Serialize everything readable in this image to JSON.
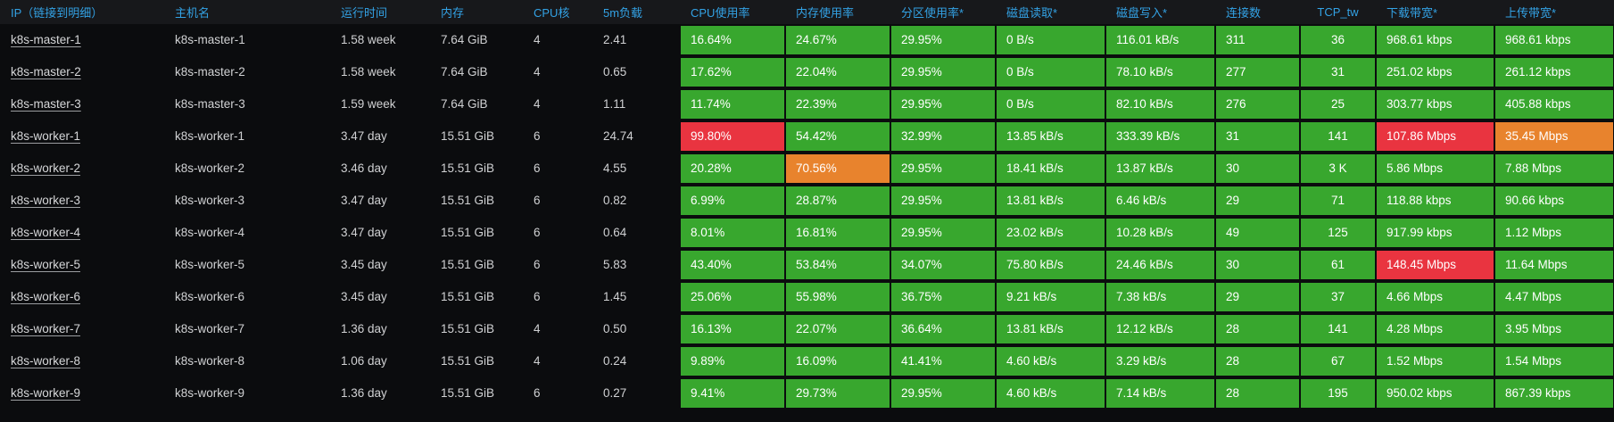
{
  "colors": {
    "ok": "#38a72e",
    "warn": "#e8832d",
    "crit": "#e93440",
    "header_text": "#33a2e5"
  },
  "table": {
    "columns": [
      {
        "id": "ip",
        "label": "IP（链接到明细）",
        "kind": "link"
      },
      {
        "id": "host",
        "label": "主机名",
        "kind": "text"
      },
      {
        "id": "uptime",
        "label": "运行时间",
        "kind": "text"
      },
      {
        "id": "mem",
        "label": "内存",
        "kind": "text"
      },
      {
        "id": "cores",
        "label": "CPU核",
        "kind": "text"
      },
      {
        "id": "load",
        "label": "5m负载",
        "kind": "text"
      },
      {
        "id": "cpu",
        "label": "CPU使用率",
        "kind": "metric"
      },
      {
        "id": "memu",
        "label": "内存使用率",
        "kind": "metric"
      },
      {
        "id": "part",
        "label": "分区使用率*",
        "kind": "metric"
      },
      {
        "id": "dread",
        "label": "磁盘读取*",
        "kind": "metric"
      },
      {
        "id": "dwrite",
        "label": "磁盘写入*",
        "kind": "metric"
      },
      {
        "id": "conn",
        "label": "连接数",
        "kind": "metric"
      },
      {
        "id": "tcp",
        "label": "TCP_tw",
        "kind": "metric",
        "align": "center"
      },
      {
        "id": "down",
        "label": "下载带宽*",
        "kind": "metric"
      },
      {
        "id": "up",
        "label": "上传带宽*",
        "kind": "metric"
      }
    ],
    "rows": [
      {
        "ip": "k8s-master-1",
        "host": "k8s-master-1",
        "uptime": "1.58 week",
        "mem": "7.64 GiB",
        "cores": "4",
        "load": "2.41",
        "metrics": {
          "cpu": {
            "v": "16.64%",
            "s": "ok"
          },
          "memu": {
            "v": "24.67%",
            "s": "ok"
          },
          "part": {
            "v": "29.95%",
            "s": "ok"
          },
          "dread": {
            "v": "0 B/s",
            "s": "ok"
          },
          "dwrite": {
            "v": "116.01 kB/s",
            "s": "ok"
          },
          "conn": {
            "v": "311",
            "s": "ok"
          },
          "tcp": {
            "v": "36",
            "s": "ok"
          },
          "down": {
            "v": "968.61 kbps",
            "s": "ok"
          },
          "up": {
            "v": "968.61 kbps",
            "s": "ok"
          }
        }
      },
      {
        "ip": "k8s-master-2",
        "host": "k8s-master-2",
        "uptime": "1.58 week",
        "mem": "7.64 GiB",
        "cores": "4",
        "load": "0.65",
        "metrics": {
          "cpu": {
            "v": "17.62%",
            "s": "ok"
          },
          "memu": {
            "v": "22.04%",
            "s": "ok"
          },
          "part": {
            "v": "29.95%",
            "s": "ok"
          },
          "dread": {
            "v": "0 B/s",
            "s": "ok"
          },
          "dwrite": {
            "v": "78.10 kB/s",
            "s": "ok"
          },
          "conn": {
            "v": "277",
            "s": "ok"
          },
          "tcp": {
            "v": "31",
            "s": "ok"
          },
          "down": {
            "v": "251.02 kbps",
            "s": "ok"
          },
          "up": {
            "v": "261.12 kbps",
            "s": "ok"
          }
        }
      },
      {
        "ip": "k8s-master-3",
        "host": "k8s-master-3",
        "uptime": "1.59 week",
        "mem": "7.64 GiB",
        "cores": "4",
        "load": "1.11",
        "metrics": {
          "cpu": {
            "v": "11.74%",
            "s": "ok"
          },
          "memu": {
            "v": "22.39%",
            "s": "ok"
          },
          "part": {
            "v": "29.95%",
            "s": "ok"
          },
          "dread": {
            "v": "0 B/s",
            "s": "ok"
          },
          "dwrite": {
            "v": "82.10 kB/s",
            "s": "ok"
          },
          "conn": {
            "v": "276",
            "s": "ok"
          },
          "tcp": {
            "v": "25",
            "s": "ok"
          },
          "down": {
            "v": "303.77 kbps",
            "s": "ok"
          },
          "up": {
            "v": "405.88 kbps",
            "s": "ok"
          }
        }
      },
      {
        "ip": "k8s-worker-1",
        "host": "k8s-worker-1",
        "uptime": "3.47 day",
        "mem": "15.51 GiB",
        "cores": "6",
        "load": "24.74",
        "metrics": {
          "cpu": {
            "v": "99.80%",
            "s": "crit"
          },
          "memu": {
            "v": "54.42%",
            "s": "ok"
          },
          "part": {
            "v": "32.99%",
            "s": "ok"
          },
          "dread": {
            "v": "13.85 kB/s",
            "s": "ok"
          },
          "dwrite": {
            "v": "333.39 kB/s",
            "s": "ok"
          },
          "conn": {
            "v": "31",
            "s": "ok"
          },
          "tcp": {
            "v": "141",
            "s": "ok"
          },
          "down": {
            "v": "107.86 Mbps",
            "s": "crit"
          },
          "up": {
            "v": "35.45 Mbps",
            "s": "warn"
          }
        }
      },
      {
        "ip": "k8s-worker-2",
        "host": "k8s-worker-2",
        "uptime": "3.46 day",
        "mem": "15.51 GiB",
        "cores": "6",
        "load": "4.55",
        "metrics": {
          "cpu": {
            "v": "20.28%",
            "s": "ok"
          },
          "memu": {
            "v": "70.56%",
            "s": "warn"
          },
          "part": {
            "v": "29.95%",
            "s": "ok"
          },
          "dread": {
            "v": "18.41 kB/s",
            "s": "ok"
          },
          "dwrite": {
            "v": "13.87 kB/s",
            "s": "ok"
          },
          "conn": {
            "v": "30",
            "s": "ok"
          },
          "tcp": {
            "v": "3 K",
            "s": "ok"
          },
          "down": {
            "v": "5.86 Mbps",
            "s": "ok"
          },
          "up": {
            "v": "7.88 Mbps",
            "s": "ok"
          }
        }
      },
      {
        "ip": "k8s-worker-3",
        "host": "k8s-worker-3",
        "uptime": "3.47 day",
        "mem": "15.51 GiB",
        "cores": "6",
        "load": "0.82",
        "metrics": {
          "cpu": {
            "v": "6.99%",
            "s": "ok"
          },
          "memu": {
            "v": "28.87%",
            "s": "ok"
          },
          "part": {
            "v": "29.95%",
            "s": "ok"
          },
          "dread": {
            "v": "13.81 kB/s",
            "s": "ok"
          },
          "dwrite": {
            "v": "6.46 kB/s",
            "s": "ok"
          },
          "conn": {
            "v": "29",
            "s": "ok"
          },
          "tcp": {
            "v": "71",
            "s": "ok"
          },
          "down": {
            "v": "118.88 kbps",
            "s": "ok"
          },
          "up": {
            "v": "90.66 kbps",
            "s": "ok"
          }
        }
      },
      {
        "ip": "k8s-worker-4",
        "host": "k8s-worker-4",
        "uptime": "3.47 day",
        "mem": "15.51 GiB",
        "cores": "6",
        "load": "0.64",
        "metrics": {
          "cpu": {
            "v": "8.01%",
            "s": "ok"
          },
          "memu": {
            "v": "16.81%",
            "s": "ok"
          },
          "part": {
            "v": "29.95%",
            "s": "ok"
          },
          "dread": {
            "v": "23.02 kB/s",
            "s": "ok"
          },
          "dwrite": {
            "v": "10.28 kB/s",
            "s": "ok"
          },
          "conn": {
            "v": "49",
            "s": "ok"
          },
          "tcp": {
            "v": "125",
            "s": "ok"
          },
          "down": {
            "v": "917.99 kbps",
            "s": "ok"
          },
          "up": {
            "v": "1.12 Mbps",
            "s": "ok"
          }
        }
      },
      {
        "ip": "k8s-worker-5",
        "host": "k8s-worker-5",
        "uptime": "3.45 day",
        "mem": "15.51 GiB",
        "cores": "6",
        "load": "5.83",
        "metrics": {
          "cpu": {
            "v": "43.40%",
            "s": "ok"
          },
          "memu": {
            "v": "53.84%",
            "s": "ok"
          },
          "part": {
            "v": "34.07%",
            "s": "ok"
          },
          "dread": {
            "v": "75.80 kB/s",
            "s": "ok"
          },
          "dwrite": {
            "v": "24.46 kB/s",
            "s": "ok"
          },
          "conn": {
            "v": "30",
            "s": "ok"
          },
          "tcp": {
            "v": "61",
            "s": "ok"
          },
          "down": {
            "v": "148.45 Mbps",
            "s": "crit"
          },
          "up": {
            "v": "11.64 Mbps",
            "s": "ok"
          }
        }
      },
      {
        "ip": "k8s-worker-6",
        "host": "k8s-worker-6",
        "uptime": "3.45 day",
        "mem": "15.51 GiB",
        "cores": "6",
        "load": "1.45",
        "metrics": {
          "cpu": {
            "v": "25.06%",
            "s": "ok"
          },
          "memu": {
            "v": "55.98%",
            "s": "ok"
          },
          "part": {
            "v": "36.75%",
            "s": "ok"
          },
          "dread": {
            "v": "9.21 kB/s",
            "s": "ok"
          },
          "dwrite": {
            "v": "7.38 kB/s",
            "s": "ok"
          },
          "conn": {
            "v": "29",
            "s": "ok"
          },
          "tcp": {
            "v": "37",
            "s": "ok"
          },
          "down": {
            "v": "4.66 Mbps",
            "s": "ok"
          },
          "up": {
            "v": "4.47 Mbps",
            "s": "ok"
          }
        }
      },
      {
        "ip": "k8s-worker-7",
        "host": "k8s-worker-7",
        "uptime": "1.36 day",
        "mem": "15.51 GiB",
        "cores": "4",
        "load": "0.50",
        "metrics": {
          "cpu": {
            "v": "16.13%",
            "s": "ok"
          },
          "memu": {
            "v": "22.07%",
            "s": "ok"
          },
          "part": {
            "v": "36.64%",
            "s": "ok"
          },
          "dread": {
            "v": "13.81 kB/s",
            "s": "ok"
          },
          "dwrite": {
            "v": "12.12 kB/s",
            "s": "ok"
          },
          "conn": {
            "v": "28",
            "s": "ok"
          },
          "tcp": {
            "v": "141",
            "s": "ok"
          },
          "down": {
            "v": "4.28 Mbps",
            "s": "ok"
          },
          "up": {
            "v": "3.95 Mbps",
            "s": "ok"
          }
        }
      },
      {
        "ip": "k8s-worker-8",
        "host": "k8s-worker-8",
        "uptime": "1.06 day",
        "mem": "15.51 GiB",
        "cores": "4",
        "load": "0.24",
        "metrics": {
          "cpu": {
            "v": "9.89%",
            "s": "ok"
          },
          "memu": {
            "v": "16.09%",
            "s": "ok"
          },
          "part": {
            "v": "41.41%",
            "s": "ok"
          },
          "dread": {
            "v": "4.60 kB/s",
            "s": "ok"
          },
          "dwrite": {
            "v": "3.29 kB/s",
            "s": "ok"
          },
          "conn": {
            "v": "28",
            "s": "ok"
          },
          "tcp": {
            "v": "67",
            "s": "ok"
          },
          "down": {
            "v": "1.52 Mbps",
            "s": "ok"
          },
          "up": {
            "v": "1.54 Mbps",
            "s": "ok"
          }
        }
      },
      {
        "ip": "k8s-worker-9",
        "host": "k8s-worker-9",
        "uptime": "1.36 day",
        "mem": "15.51 GiB",
        "cores": "6",
        "load": "0.27",
        "metrics": {
          "cpu": {
            "v": "9.41%",
            "s": "ok"
          },
          "memu": {
            "v": "29.73%",
            "s": "ok"
          },
          "part": {
            "v": "29.95%",
            "s": "ok"
          },
          "dread": {
            "v": "4.60 kB/s",
            "s": "ok"
          },
          "dwrite": {
            "v": "7.14 kB/s",
            "s": "ok"
          },
          "conn": {
            "v": "28",
            "s": "ok"
          },
          "tcp": {
            "v": "195",
            "s": "ok"
          },
          "down": {
            "v": "950.02 kbps",
            "s": "ok"
          },
          "up": {
            "v": "867.39 kbps",
            "s": "ok"
          }
        }
      }
    ]
  }
}
